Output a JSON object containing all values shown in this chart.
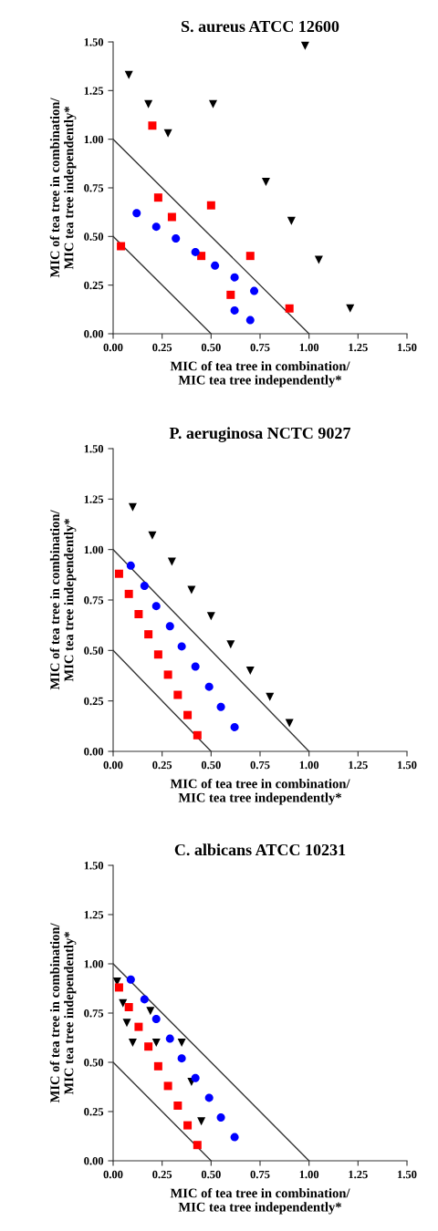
{
  "chart_data": [
    {
      "type": "scatter",
      "title": "S. aureus ATCC 12600",
      "xlabel": "MIC of tea tree in combination/\nMIC tea tree independently*",
      "ylabel": "MIC of tea tree in combination/\nMIC tea tree independently*",
      "xlim": [
        0,
        1.5
      ],
      "ylim": [
        0,
        1.5
      ],
      "xticks": [
        {
          "value": 0,
          "label": "0.00"
        },
        {
          "value": 0.25,
          "label": "0.25"
        },
        {
          "value": 0.5,
          "label": "0.50"
        },
        {
          "value": 0.75,
          "label": "0.75"
        },
        {
          "value": 1,
          "label": "1.00"
        },
        {
          "value": 1.25,
          "label": "1.25"
        },
        {
          "value": 1.5,
          "label": "1.50"
        }
      ],
      "yticks": [
        {
          "value": 0,
          "label": "0.00"
        },
        {
          "value": 0.25,
          "label": "0.25"
        },
        {
          "value": 0.5,
          "label": "0.50"
        },
        {
          "value": 0.75,
          "label": "0.75"
        },
        {
          "value": 1,
          "label": "1.00"
        },
        {
          "value": 1.25,
          "label": "1.25"
        },
        {
          "value": 1.5,
          "label": "1.50"
        }
      ],
      "grid": false,
      "series": [
        {
          "type": "line",
          "color": "#333333",
          "marker": "none",
          "x": [
            0,
            1
          ],
          "values": [
            1,
            0
          ]
        },
        {
          "type": "line",
          "color": "#333333",
          "marker": "none",
          "x": [
            0,
            0.5
          ],
          "values": [
            0.5,
            0
          ]
        },
        {
          "color": "#000000",
          "marker": "triangle",
          "x": [
            0.08,
            0.18,
            0.28,
            0.51,
            0.98,
            0.78,
            0.91,
            1.05,
            1.21
          ],
          "values": [
            1.33,
            1.18,
            1.03,
            1.18,
            1.48,
            0.78,
            0.58,
            0.38,
            0.13
          ]
        },
        {
          "color": "#ff0000",
          "marker": "square",
          "x": [
            0.2,
            0.23,
            0.3,
            0.5,
            0.04,
            0.45,
            0.7,
            0.6,
            0.9
          ],
          "values": [
            1.07,
            0.7,
            0.6,
            0.66,
            0.45,
            0.4,
            0.4,
            0.2,
            0.13
          ]
        },
        {
          "color": "#0000ff",
          "marker": "circle",
          "x": [
            0.12,
            0.22,
            0.32,
            0.42,
            0.52,
            0.62,
            0.72,
            0.62,
            0.7
          ],
          "values": [
            0.62,
            0.55,
            0.49,
            0.42,
            0.35,
            0.29,
            0.22,
            0.12,
            0.07
          ]
        }
      ]
    },
    {
      "type": "scatter",
      "title": "P. aeruginosa NCTC 9027",
      "xlabel": "MIC of tea tree in combination/\nMIC tea tree independently*",
      "ylabel": "MIC of tea tree in combination/\nMIC tea tree independently*",
      "xlim": [
        0,
        1.5
      ],
      "ylim": [
        0,
        1.5
      ],
      "xticks": [
        {
          "value": 0,
          "label": "0.00"
        },
        {
          "value": 0.25,
          "label": "0.25"
        },
        {
          "value": 0.5,
          "label": "0.50"
        },
        {
          "value": 0.75,
          "label": "0.75"
        },
        {
          "value": 1,
          "label": "1.00"
        },
        {
          "value": 1.25,
          "label": "1.25"
        },
        {
          "value": 1.5,
          "label": "1.50"
        }
      ],
      "yticks": [
        {
          "value": 0,
          "label": "0.00"
        },
        {
          "value": 0.25,
          "label": "0.25"
        },
        {
          "value": 0.5,
          "label": "0.50"
        },
        {
          "value": 0.75,
          "label": "0.75"
        },
        {
          "value": 1,
          "label": "1.00"
        },
        {
          "value": 1.25,
          "label": "1.25"
        },
        {
          "value": 1.5,
          "label": "1.50"
        }
      ],
      "grid": false,
      "series": [
        {
          "type": "line",
          "color": "#333333",
          "marker": "none",
          "x": [
            0,
            1
          ],
          "values": [
            1,
            0
          ]
        },
        {
          "type": "line",
          "color": "#333333",
          "marker": "none",
          "x": [
            0,
            0.5
          ],
          "values": [
            0.5,
            0
          ]
        },
        {
          "color": "#000000",
          "marker": "triangle",
          "x": [
            0.1,
            0.2,
            0.3,
            0.4,
            0.5,
            0.6,
            0.7,
            0.8,
            0.9
          ],
          "values": [
            1.21,
            1.07,
            0.94,
            0.8,
            0.67,
            0.53,
            0.4,
            0.27,
            0.14
          ]
        },
        {
          "color": "#0000ff",
          "marker": "circle",
          "x": [
            0.09,
            0.16,
            0.22,
            0.29,
            0.35,
            0.42,
            0.49,
            0.55,
            0.62
          ],
          "values": [
            0.92,
            0.82,
            0.72,
            0.62,
            0.52,
            0.42,
            0.32,
            0.22,
            0.12
          ]
        },
        {
          "color": "#ff0000",
          "marker": "square",
          "x": [
            0.03,
            0.08,
            0.13,
            0.18,
            0.23,
            0.28,
            0.33,
            0.38,
            0.43
          ],
          "values": [
            0.88,
            0.78,
            0.68,
            0.58,
            0.48,
            0.38,
            0.28,
            0.18,
            0.08
          ]
        }
      ]
    },
    {
      "type": "scatter",
      "title": "C. albicans ATCC 10231",
      "xlabel": "MIC of tea tree in combination/\nMIC tea tree independently*",
      "ylabel": "MIC of tea tree in combination/\nMIC tea tree independently*",
      "xlim": [
        0,
        1.5
      ],
      "ylim": [
        0,
        1.5
      ],
      "xticks": [
        {
          "value": 0,
          "label": "0.00"
        },
        {
          "value": 0.25,
          "label": "0.25"
        },
        {
          "value": 0.5,
          "label": "0.50"
        },
        {
          "value": 0.75,
          "label": "0.75"
        },
        {
          "value": 1,
          "label": "1.00"
        },
        {
          "value": 1.25,
          "label": "1.25"
        },
        {
          "value": 1.5,
          "label": "1.50"
        }
      ],
      "yticks": [
        {
          "value": 0,
          "label": "0.00"
        },
        {
          "value": 0.25,
          "label": "0.25"
        },
        {
          "value": 0.5,
          "label": "0.50"
        },
        {
          "value": 0.75,
          "label": "0.75"
        },
        {
          "value": 1,
          "label": "1.00"
        },
        {
          "value": 1.25,
          "label": "1.25"
        },
        {
          "value": 1.5,
          "label": "1.50"
        }
      ],
      "grid": false,
      "series": [
        {
          "type": "line",
          "color": "#333333",
          "marker": "none",
          "x": [
            0,
            1
          ],
          "values": [
            1,
            0
          ]
        },
        {
          "type": "line",
          "color": "#333333",
          "marker": "none",
          "x": [
            0,
            0.5
          ],
          "values": [
            0.5,
            0
          ]
        },
        {
          "color": "#000000",
          "marker": "triangle",
          "x": [
            0.02,
            0.05,
            0.07,
            0.1,
            0.19,
            0.22,
            0.35,
            0.4,
            0.45
          ],
          "values": [
            0.91,
            0.8,
            0.7,
            0.6,
            0.76,
            0.6,
            0.6,
            0.4,
            0.2
          ]
        },
        {
          "color": "#0000ff",
          "marker": "circle",
          "x": [
            0.09,
            0.16,
            0.22,
            0.29,
            0.35,
            0.42,
            0.49,
            0.55,
            0.62
          ],
          "values": [
            0.92,
            0.82,
            0.72,
            0.62,
            0.52,
            0.42,
            0.32,
            0.22,
            0.12
          ]
        },
        {
          "color": "#ff0000",
          "marker": "square",
          "x": [
            0.03,
            0.08,
            0.13,
            0.18,
            0.23,
            0.28,
            0.33,
            0.38,
            0.43
          ],
          "values": [
            0.88,
            0.78,
            0.68,
            0.58,
            0.48,
            0.38,
            0.28,
            0.18,
            0.08
          ]
        }
      ]
    }
  ]
}
